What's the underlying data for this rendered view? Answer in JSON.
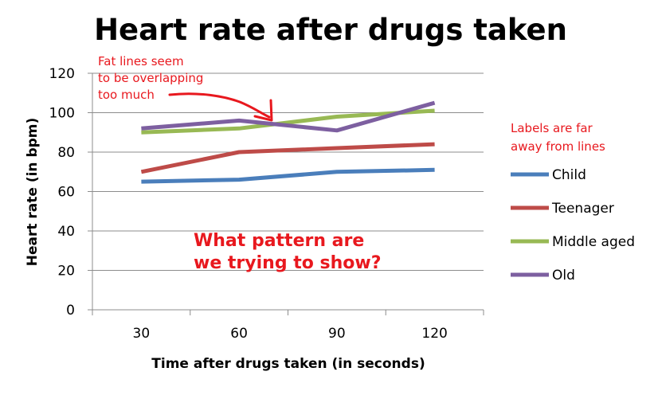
{
  "chart_data": {
    "type": "line",
    "title": "Heart rate after drugs taken",
    "xlabel": "Time after drugs taken (in seconds)",
    "ylabel": "Heart rate (in bpm)",
    "categories": [
      "30",
      "60",
      "90",
      "120"
    ],
    "ylim": [
      0,
      120
    ],
    "yticks": [
      "0",
      "20",
      "40",
      "60",
      "80",
      "100",
      "120"
    ],
    "grid": "horizontal",
    "legend_position": "right",
    "series": [
      {
        "name": "Child",
        "color": "#4a7ebb",
        "values": [
          65,
          66,
          70,
          71
        ]
      },
      {
        "name": "Teenager",
        "color": "#be4b48",
        "values": [
          70,
          80,
          82,
          84
        ]
      },
      {
        "name": "Middle aged",
        "color": "#98b954",
        "values": [
          90,
          92,
          98,
          101
        ]
      },
      {
        "name": "Old",
        "color": "#7d5fa0",
        "values": [
          92,
          96,
          91,
          105
        ]
      }
    ],
    "annotations": {
      "lines_note": [
        "Fat lines seem",
        "to be overlapping",
        "too much"
      ],
      "labels_note": [
        "Labels are far",
        "away from lines"
      ],
      "pattern_question": [
        "What pattern are",
        "we trying to show?"
      ],
      "color": "#e8181e"
    }
  }
}
